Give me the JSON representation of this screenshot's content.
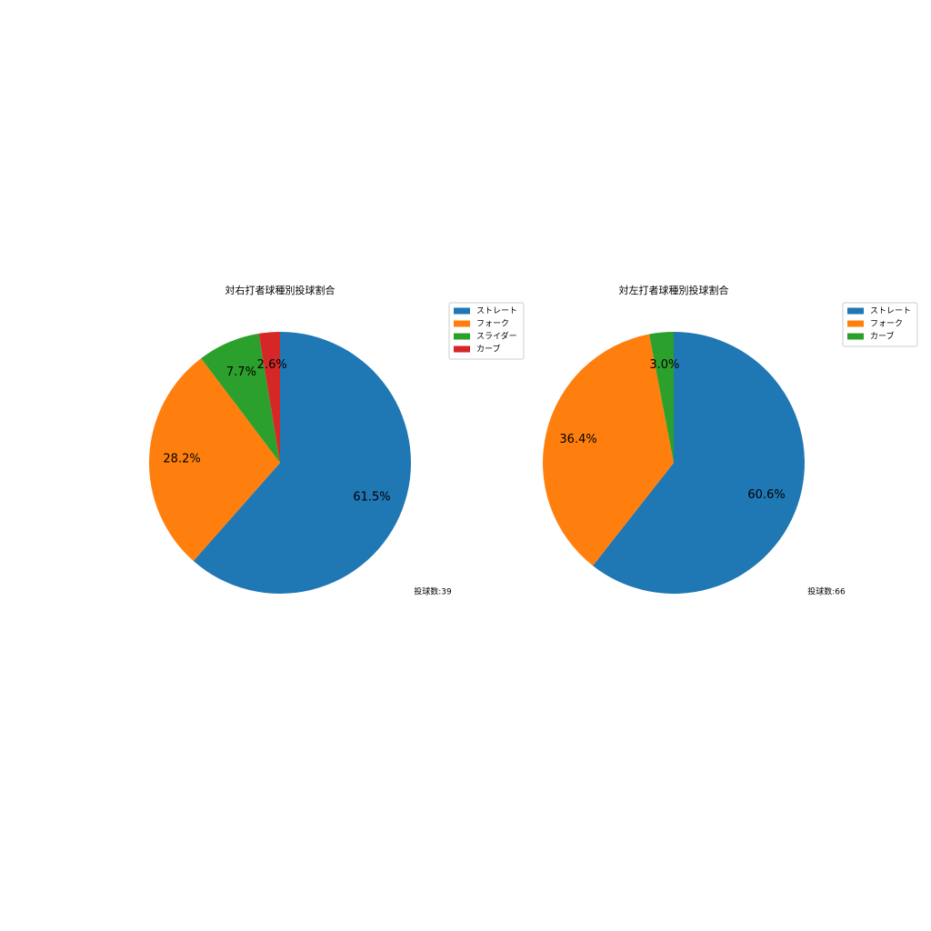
{
  "chart_data": [
    {
      "type": "pie",
      "title": "対右打者球種別投球割合",
      "categories": [
        "ストレート",
        "フォーク",
        "スライダー",
        "カーブ"
      ],
      "values": [
        61.5,
        28.2,
        7.7,
        2.6
      ],
      "value_labels": [
        "61.5%",
        "28.2%",
        "7.7%",
        "2.6%"
      ],
      "colors": [
        "#1f77b4",
        "#ff7f0e",
        "#2ca02c",
        "#d62728"
      ],
      "annotation": "投球数:39",
      "legend": "upper right"
    },
    {
      "type": "pie",
      "title": "対左打者球種別投球割合",
      "categories": [
        "ストレート",
        "フォーク",
        "カーブ"
      ],
      "values": [
        60.6,
        36.4,
        3.0
      ],
      "value_labels": [
        "60.6%",
        "36.4%",
        "3.0%"
      ],
      "colors": [
        "#1f77b4",
        "#ff7f0e",
        "#2ca02c"
      ],
      "annotation": "投球数:66",
      "legend": "upper right"
    }
  ]
}
